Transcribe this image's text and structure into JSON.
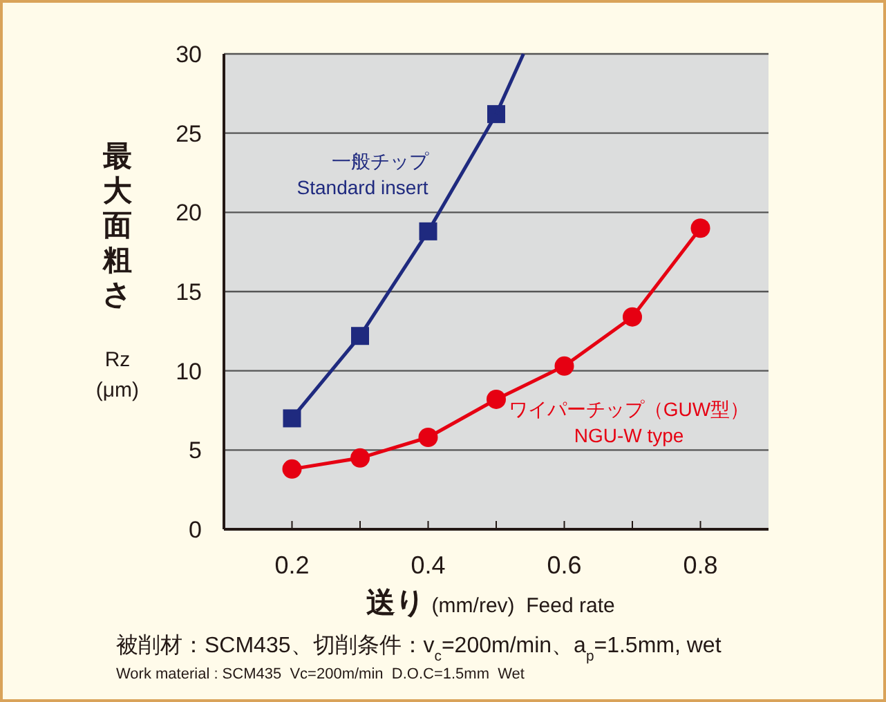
{
  "chart_data": {
    "type": "line",
    "xlabel": "送り (mm/rev)  Feed rate",
    "ylabel": "最大面粗さ\nRz\n(μm)",
    "series": [
      {
        "name": "一般チップ\nStandard insert",
        "color": "#1f2a7f",
        "marker": "square",
        "x": [
          0.2,
          0.3,
          0.4,
          0.5
        ],
        "values": [
          7.0,
          12.2,
          18.8,
          26.2
        ]
      },
      {
        "type": "line",
        "color": "#1f2a7f",
        "marker": "none",
        "x": [
          0.5,
          0.54
        ],
        "values": [
          26.2,
          30
        ]
      },
      {
        "name": "ワイパーチップ（GUW型）\nNGU-W type",
        "color": "#e60012",
        "marker": "circle",
        "x": [
          0.2,
          0.3,
          0.4,
          0.5,
          0.6,
          0.7,
          0.8
        ],
        "values": [
          3.8,
          4.5,
          5.8,
          8.2,
          10.3,
          13.4,
          19.0
        ]
      }
    ],
    "xlim": [
      0.1,
      0.9
    ],
    "ylim": [
      0,
      30
    ],
    "xticks": [
      {
        "value": 0.2,
        "label": "0.2"
      },
      {
        "value": 0.3,
        "label": null
      },
      {
        "value": 0.4,
        "label": "0.4"
      },
      {
        "value": 0.5,
        "label": null
      },
      {
        "value": 0.6,
        "label": "0.6"
      },
      {
        "value": 0.7,
        "label": null
      },
      {
        "value": 0.8,
        "label": "0.8"
      }
    ],
    "yticks": [
      0,
      5,
      10,
      15,
      20,
      25,
      30
    ],
    "grid": "y",
    "line_style": "solid",
    "annotations": [
      "被削材：SCM435、切削条件：v$_{c}$=200m/min、a$_{p}$=1.5mm, wet",
      "Work material : SCM435  Vc=200m/min  D.O.C=1.5mm  Wet"
    ]
  }
}
